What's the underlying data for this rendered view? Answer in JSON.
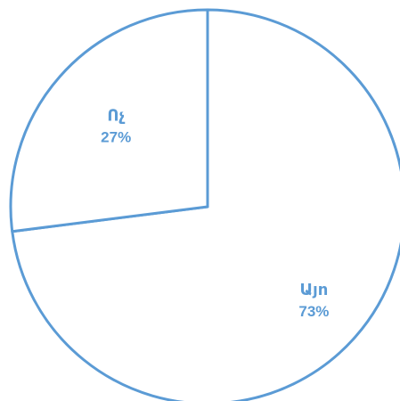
{
  "chart_data": {
    "type": "pie",
    "categories": [
      "Այո",
      "Ոչ"
    ],
    "values": [
      73,
      27
    ],
    "labels": [
      "73%",
      "27%"
    ],
    "colors": {
      "stroke": "#5b9bd5",
      "label": "#5b9bd5",
      "fill": "#ffffff"
    },
    "legend": "none"
  }
}
